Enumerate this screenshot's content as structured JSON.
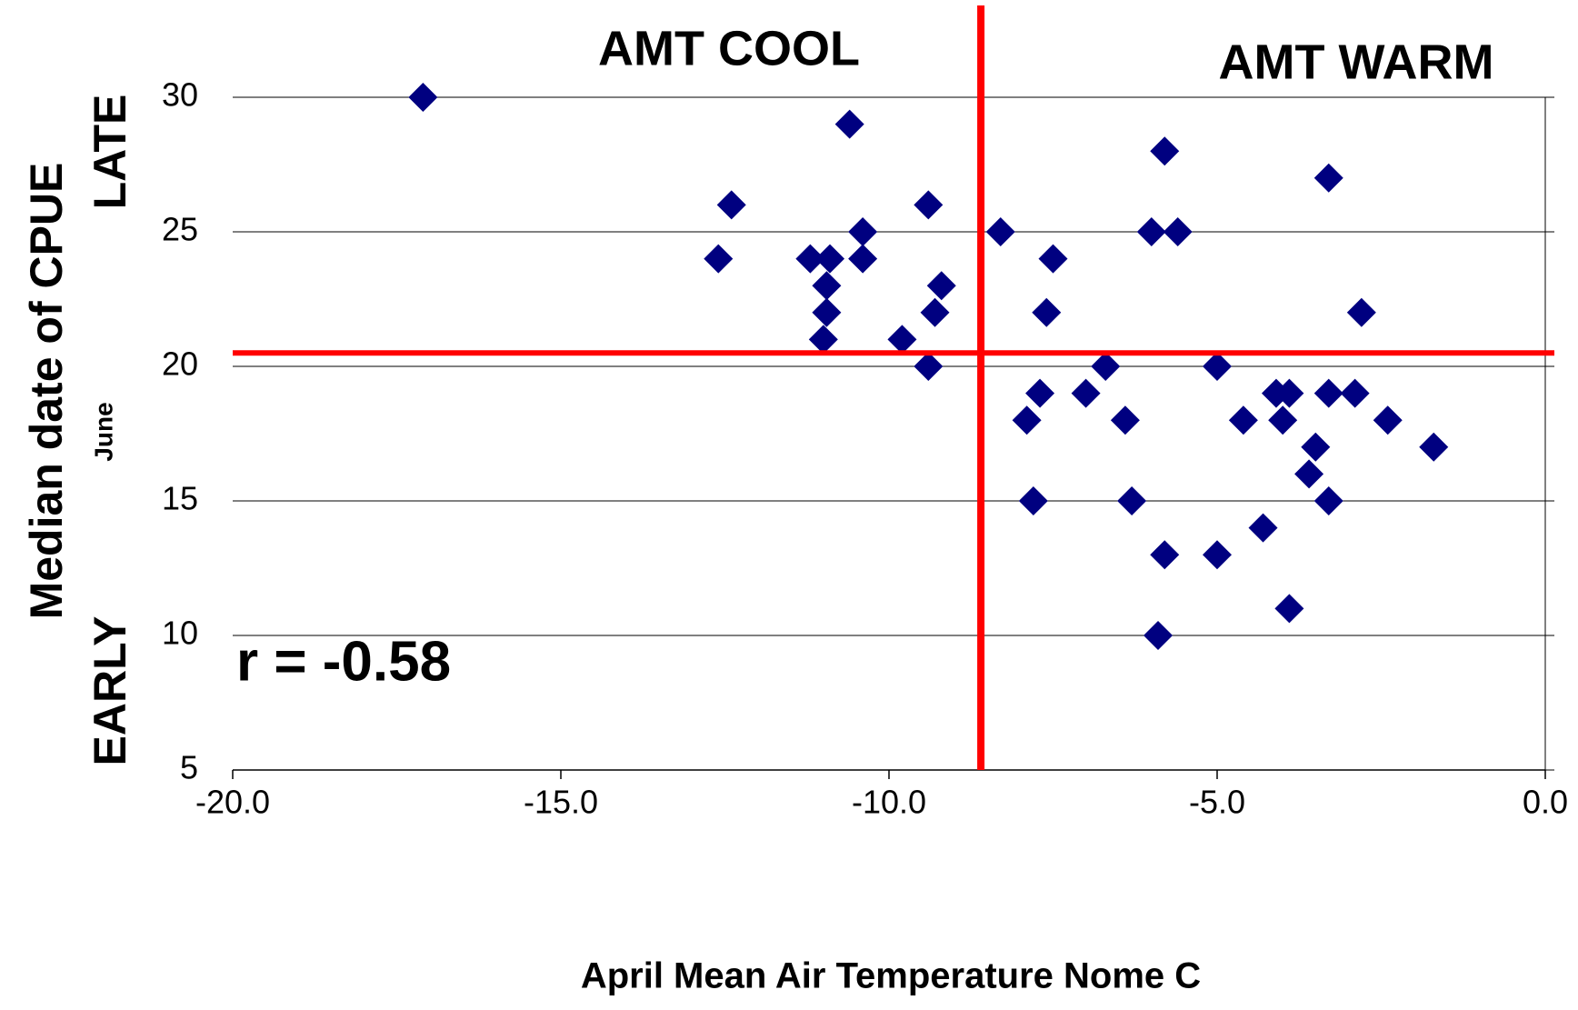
{
  "chart_data": {
    "type": "scatter",
    "title_left": "AMT COOL",
    "title_right": "AMT WARM",
    "annotation": "r = -0.58",
    "x_label": "April Mean Air Temperature Nome C",
    "y_label": "Median date of CPUE",
    "y_label_top": "LATE",
    "y_label_bottom": "EARLY",
    "y_unit": "June",
    "color": "#000080",
    "grid": true,
    "xlim": [
      -20,
      0
    ],
    "ylim": [
      5,
      30
    ],
    "xticks": [
      {
        "value": -20,
        "label": "-20.0"
      },
      {
        "value": -15,
        "label": "-15.0"
      },
      {
        "value": -10,
        "label": "-10.0"
      },
      {
        "value": -5,
        "label": "-5.0"
      },
      {
        "value": 0,
        "label": "0.0"
      }
    ],
    "yticks": [
      5,
      10,
      15,
      20,
      25,
      30
    ],
    "reference_lines": {
      "x": -8.6,
      "y": 20.5,
      "color": "#ff0000"
    },
    "x": [
      -17.1,
      -10.6,
      -12.4,
      -12.6,
      -11.2,
      -10.9,
      -10.95,
      -10.95,
      -11.0,
      -10.4,
      -10.4,
      -9.4,
      -9.2,
      -9.3,
      -9.8,
      -9.4,
      -8.3,
      -7.5,
      -7.6,
      -6.7,
      -7.7,
      -7.0,
      -7.9,
      -6.4,
      -7.8,
      -6.3,
      -5.8,
      -6.0,
      -5.6,
      -5.0,
      -4.1,
      -3.9,
      -4.6,
      -4.0,
      -3.5,
      -3.6,
      -3.3,
      -2.9,
      -2.4,
      -1.7,
      -3.3,
      -2.8,
      -3.3,
      -5.8,
      -5.0,
      -4.3,
      -3.9,
      -5.9
    ],
    "y": [
      30,
      29,
      26,
      24,
      24,
      24,
      23,
      22,
      21,
      25,
      24,
      26,
      23,
      22,
      21,
      20,
      25,
      24,
      22,
      20,
      19,
      19,
      18,
      18,
      15,
      15,
      28,
      25,
      25,
      20,
      19,
      19,
      18,
      18,
      17,
      16,
      19,
      19,
      18,
      17,
      27,
      22,
      15,
      13,
      13,
      14,
      11,
      10
    ]
  }
}
